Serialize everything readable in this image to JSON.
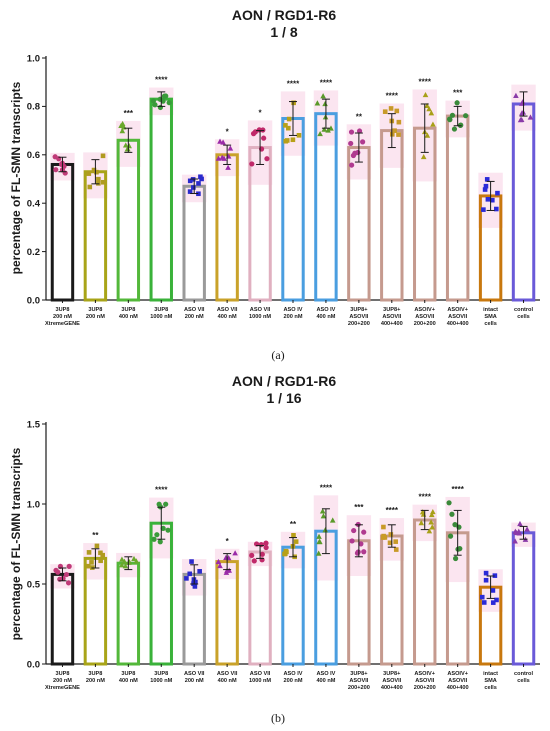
{
  "chart_data": [
    {
      "type": "bar",
      "title": "AON / RGD1-R6",
      "subtitle": "1 / 8",
      "ylabel": "percentage of FL-SMN transcripts",
      "ylim": [
        0,
        1.0
      ],
      "yticks": [
        "0.0",
        "0.2",
        "0.4",
        "0.6",
        "0.8",
        "1.0"
      ],
      "panel_label": "(a)",
      "categories": [
        [
          "3UP8",
          "200 nM",
          "XtremeGENE"
        ],
        [
          "3UP8",
          "200 nM"
        ],
        [
          "3UP8",
          "400 nM"
        ],
        [
          "3UP8",
          "1000 nM"
        ],
        [
          "ASO VII",
          "200 nM"
        ],
        [
          "ASO VII",
          "400 nM"
        ],
        [
          "ASO VII",
          "1000 nM"
        ],
        [
          "ASO IV",
          "200 nM"
        ],
        [
          "ASO IV",
          "400 nM"
        ],
        [
          "3UP8+",
          "ASOVII",
          "200+200"
        ],
        [
          "3UP8+",
          "ASOVII",
          "400+400"
        ],
        [
          "ASOIV+",
          "ASOVII",
          "200+200"
        ],
        [
          "ASOIV+",
          "ASOVII",
          "400+400"
        ],
        [
          "intact",
          "SMA",
          "cells"
        ],
        [
          "control",
          "cells"
        ]
      ],
      "values": [
        0.56,
        0.53,
        0.66,
        0.83,
        0.47,
        0.6,
        0.63,
        0.75,
        0.77,
        0.63,
        0.7,
        0.71,
        0.76,
        0.43,
        0.81
      ],
      "errors": [
        0.03,
        0.05,
        0.05,
        0.03,
        0.03,
        0.04,
        0.07,
        0.07,
        0.06,
        0.06,
        0.07,
        0.1,
        0.04,
        0.06,
        0.05
      ],
      "significance": [
        "",
        "",
        "***",
        "****",
        "",
        "*",
        "*",
        "****",
        "****",
        "**",
        "****",
        "****",
        "***",
        "",
        ""
      ],
      "bar_colors": [
        "#1a1a1a",
        "#a8a418",
        "#53b83a",
        "#3ab23a",
        "#9a9a9a",
        "#c9a22a",
        "#e0b0c0",
        "#4a9ee0",
        "#4a9ee0",
        "#c59a8e",
        "#c59a8e",
        "#c59a8e",
        "#c59a8e",
        "#c8780e",
        "#6a5ad8"
      ],
      "point_colors": [
        "#c03a78",
        "#b09b20",
        "#6aa82c",
        "#3a9a3a",
        "#2a2acc",
        "#9a2aa8",
        "#c02a6a",
        "#b8a018",
        "#5a9a2a",
        "#b03a90",
        "#c89a28",
        "#a8a018",
        "#3a8a3a",
        "#2a2ad8",
        "#8a3aa8"
      ]
    },
    {
      "type": "bar",
      "title": "AON / RGD1-R6",
      "subtitle": "1 / 16",
      "ylabel": "percentage of FL-SMN transcripts",
      "ylim": [
        0,
        1.5
      ],
      "yticks": [
        "0.0",
        "0.5",
        "1.0",
        "1.5"
      ],
      "panel_label": "(b)",
      "categories": [
        [
          "3UP8",
          "200 nM",
          "XtremeGENE"
        ],
        [
          "3UP8",
          "200 nM"
        ],
        [
          "3UP8",
          "400 nM"
        ],
        [
          "3UP8",
          "1000 nM"
        ],
        [
          "ASO VII",
          "200 nM"
        ],
        [
          "ASO VII",
          "400 nM"
        ],
        [
          "ASO VII",
          "1000 nM"
        ],
        [
          "ASO IV",
          "200 nM"
        ],
        [
          "ASO IV",
          "400 nM"
        ],
        [
          "3UP8+",
          "ASOVII",
          "200+200"
        ],
        [
          "3UP8+",
          "ASOVII",
          "400+400"
        ],
        [
          "ASOIV+",
          "ASOVII",
          "200+200"
        ],
        [
          "ASOIV+",
          "ASOVII",
          "400+400"
        ],
        [
          "intact",
          "SMA",
          "cells"
        ],
        [
          "control",
          "cells"
        ]
      ],
      "values": [
        0.56,
        0.66,
        0.63,
        0.88,
        0.56,
        0.64,
        0.7,
        0.73,
        0.83,
        0.77,
        0.8,
        0.9,
        0.82,
        0.48,
        0.82
      ],
      "errors": [
        0.04,
        0.06,
        0.04,
        0.1,
        0.06,
        0.05,
        0.04,
        0.06,
        0.14,
        0.1,
        0.07,
        0.06,
        0.14,
        0.07,
        0.04
      ],
      "significance": [
        "",
        "**",
        "",
        "****",
        "",
        "*",
        "",
        "**",
        "****",
        "***",
        "****",
        "****",
        "****",
        "",
        ""
      ],
      "bar_colors": [
        "#1a1a1a",
        "#a8a418",
        "#53b83a",
        "#3ab23a",
        "#9a9a9a",
        "#c9a22a",
        "#e0b0c0",
        "#4a9ee0",
        "#4a9ee0",
        "#c59a8e",
        "#c59a8e",
        "#c59a8e",
        "#c59a8e",
        "#c8780e",
        "#6a5ad8"
      ],
      "point_colors": [
        "#c03a78",
        "#b09b20",
        "#6aa82c",
        "#3a9a3a",
        "#2a2acc",
        "#9a2aa8",
        "#c02a6a",
        "#b8a018",
        "#5a9a2a",
        "#b03a90",
        "#c89a28",
        "#a8a018",
        "#3a8a3a",
        "#2a2ad8",
        "#8a3aa8"
      ]
    }
  ]
}
